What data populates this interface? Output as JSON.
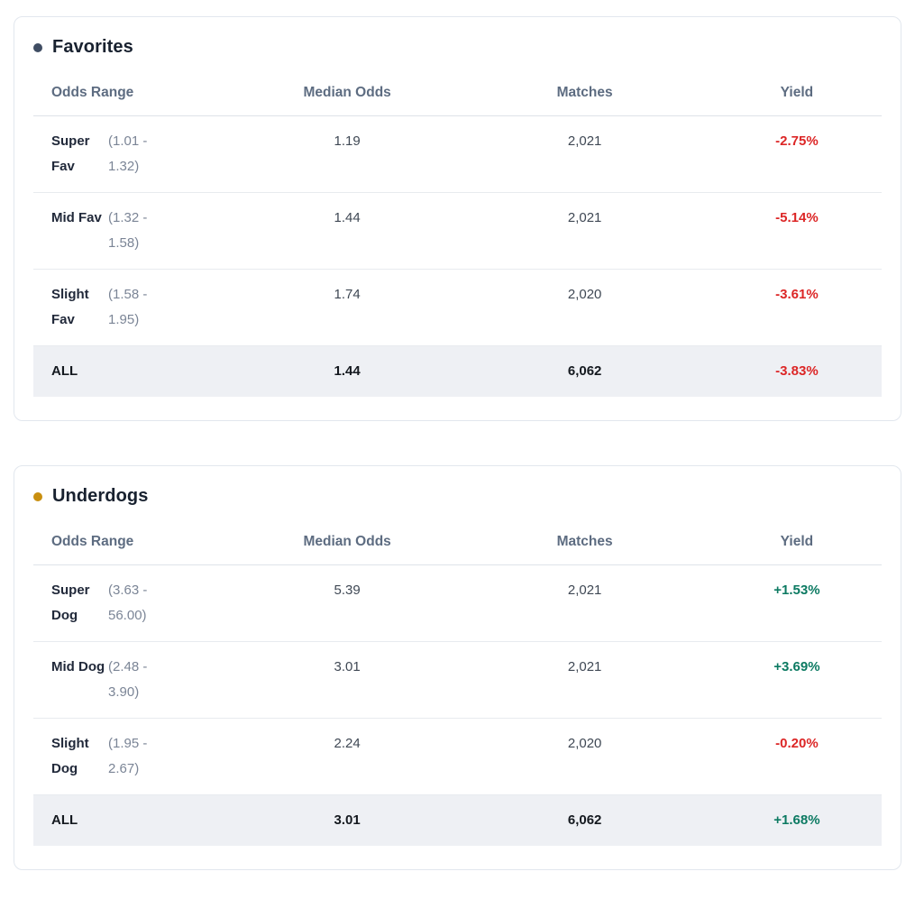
{
  "colors": {
    "positive": "#0c7a62",
    "negative": "#dc2626"
  },
  "cards": [
    {
      "title": "Favorites",
      "dot_color": "#3f4d63",
      "columns": [
        "Odds Range",
        "Median Odds",
        "Matches",
        "Yield"
      ],
      "rows": [
        {
          "name": "Super Fav",
          "range": "(1.01 - 1.32)",
          "median_odds": "1.19",
          "matches": "2,021",
          "yield": "-2.75%",
          "yield_sign": "negative"
        },
        {
          "name": "Mid Fav",
          "range": "(1.32 - 1.58)",
          "median_odds": "1.44",
          "matches": "2,021",
          "yield": "-5.14%",
          "yield_sign": "negative"
        },
        {
          "name": "Slight Fav",
          "range": "(1.58 - 1.95)",
          "median_odds": "1.74",
          "matches": "2,020",
          "yield": "-3.61%",
          "yield_sign": "negative"
        }
      ],
      "total": {
        "label": "ALL",
        "median_odds": "1.44",
        "matches": "6,062",
        "yield": "-3.83%",
        "yield_sign": "negative"
      }
    },
    {
      "title": "Underdogs",
      "dot_color": "#c98f0f",
      "columns": [
        "Odds Range",
        "Median Odds",
        "Matches",
        "Yield"
      ],
      "rows": [
        {
          "name": "Super Dog",
          "range": "(3.63 - 56.00)",
          "median_odds": "5.39",
          "matches": "2,021",
          "yield": "+1.53%",
          "yield_sign": "positive"
        },
        {
          "name": "Mid Dog",
          "range": "(2.48 - 3.90)",
          "median_odds": "3.01",
          "matches": "2,021",
          "yield": "+3.69%",
          "yield_sign": "positive"
        },
        {
          "name": "Slight Dog",
          "range": "(1.95 - 2.67)",
          "median_odds": "2.24",
          "matches": "2,020",
          "yield": "-0.20%",
          "yield_sign": "negative"
        }
      ],
      "total": {
        "label": "ALL",
        "median_odds": "3.01",
        "matches": "6,062",
        "yield": "+1.68%",
        "yield_sign": "positive"
      }
    }
  ]
}
